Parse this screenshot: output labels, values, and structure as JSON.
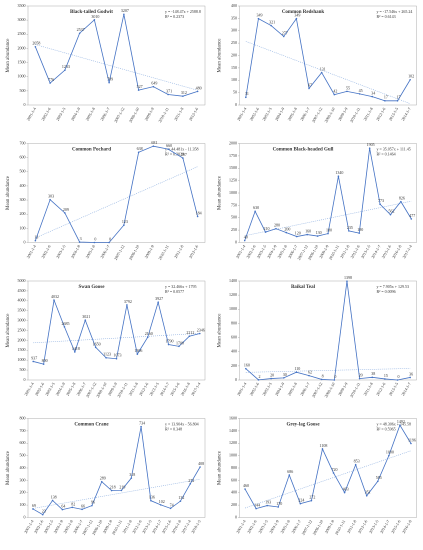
{
  "chart_data": [
    {
      "type": "line",
      "title": "Black-tailed Godwit",
      "y_label": "Mean abundance",
      "equation": "y = -148.47x + 2588.8",
      "r_squared": "R² = 0.2373",
      "color": "#4472c4",
      "categories": [
        "2001-1-4",
        "2002-1-6",
        "2003-1-5",
        "2004-1-9",
        "2005-1-8",
        "2006-1-7",
        "2007-1-12",
        "2008-1-10",
        "2009-1-9",
        "2010-1-11",
        "2011-1-8",
        "2012-1-6"
      ],
      "values": [
        2058,
        776,
        1233,
        2537,
        3010,
        789,
        3207,
        527,
        649,
        371,
        312,
        480
      ],
      "ylim": [
        0,
        3500
      ],
      "yticks": [
        0,
        500,
        1000,
        1500,
        2000,
        2500,
        3000,
        3500
      ]
    },
    {
      "type": "line",
      "title": "Common Redshank",
      "y_label": "Mean abundance",
      "equation": "y = -17.546x + 265.24",
      "r_squared": "R² = 0.6143",
      "color": "#4472c4",
      "categories": [
        "2001-1-4",
        "2002-1-6",
        "2003-1-5",
        "2004-1-9",
        "2005-1-8",
        "2006-1-7",
        "2007-1-12",
        "2008-1-10",
        "2009-1-9",
        "2010-1-11",
        "2011-1-8",
        "2012-1-6",
        "2013-1-5",
        "2014-1-7"
      ],
      "values": [
        31,
        349,
        321,
        277,
        349,
        67,
        131,
        42,
        55,
        45,
        34,
        17,
        17,
        102
      ],
      "ylim": [
        0,
        400
      ],
      "yticks": [
        0,
        50,
        100,
        150,
        200,
        250,
        300,
        350,
        400
      ]
    },
    {
      "type": "line",
      "title": "Common Pochard",
      "y_label": "Mean abundance",
      "equation": "y = 44.481x - 11.358",
      "r_squared": "R² = 0.3029",
      "color": "#4472c4",
      "categories": [
        "2001-1-4",
        "2002-1-6",
        "2003-1-5",
        "2004-1-9",
        "2005-1-8",
        "2006-1-7",
        "2007-1-12",
        "2008-1-10",
        "2009-1-9",
        "2010-1-11",
        "2011-1-8",
        "2012-1-6"
      ],
      "values": [
        13,
        303,
        209,
        3,
        0,
        0,
        123,
        638,
        681,
        660,
        597,
        184
      ],
      "ylim": [
        0,
        700
      ],
      "yticks": [
        0,
        100,
        200,
        300,
        400,
        500,
        600,
        700
      ]
    },
    {
      "type": "line",
      "title": "Common Black-headed Gull",
      "y_label": "Mean abundance",
      "equation": "y = 35.057x + 111.45",
      "r_squared": "R² = 0.1464",
      "color": "#4472c4",
      "categories": [
        "2001-1-4",
        "2002-1-6",
        "2003-1-5",
        "2004-1-9",
        "2005-1-8",
        "2006-1-7",
        "2007-1-12",
        "2008-1-10",
        "2009-1-9",
        "2010-1-11",
        "2011-1-8",
        "2012-1-6",
        "2013-1-5",
        "2014-1-7",
        "2015-1-6",
        "2016-1-8",
        "2017-1-4"
      ],
      "values": [
        40,
        630,
        210,
        280,
        200,
        120,
        160,
        130,
        180,
        1340,
        235,
        190,
        1905,
        773,
        562,
        826,
        477
      ],
      "ylim": [
        0,
        2000
      ],
      "yticks": [
        0,
        250,
        500,
        750,
        1000,
        1250,
        1500,
        1750,
        2000
      ]
    },
    {
      "type": "line",
      "title": "Swan Goose",
      "y_label": "Mean abundance",
      "equation": "y = 32.466x + 1795",
      "r_squared": "R² = 0.0577",
      "color": "#4472c4",
      "categories": [
        "2001-1-4",
        "2002-1-6",
        "2003-1-5",
        "2004-1-9",
        "2005-1-8",
        "2006-1-7",
        "2007-1-12",
        "2008-1-10",
        "2009-1-9",
        "2010-1-11",
        "2011-1-8",
        "2012-1-6",
        "2013-1-5",
        "2014-1-7",
        "2015-1-6",
        "2016-1-8",
        "2017-1-4"
      ],
      "values": [
        937,
        800,
        4032,
        2685,
        1418,
        3021,
        1650,
        1123,
        1073,
        3792,
        1306,
        2160,
        3927,
        1790,
        1700,
        2212,
        2346
      ],
      "ylim": [
        0,
        5000
      ],
      "yticks": [
        0,
        500,
        1000,
        1500,
        2000,
        2500,
        3000,
        3500,
        4000,
        4500,
        5000
      ]
    },
    {
      "type": "line",
      "title": "Baikal Teal",
      "y_label": "Mean abundance",
      "equation": "y = 7.905x + 129.53",
      "r_squared": "R² = 0.0096",
      "color": "#4472c4",
      "categories": [
        "2001-1-4",
        "2002-1-6",
        "2003-1-5",
        "2004-1-9",
        "2005-1-8",
        "2006-1-7",
        "2007-1-12",
        "2008-1-10",
        "2009-1-9",
        "2010-1-11",
        "2011-1-8",
        "2012-1-6",
        "2013-1-5",
        "2014-1-7"
      ],
      "values": [
        160,
        2,
        20,
        30,
        110,
        62,
        8,
        0,
        1398,
        20,
        38,
        15,
        0,
        36
      ],
      "ylim": [
        0,
        1400
      ],
      "yticks": [
        0,
        200,
        400,
        600,
        800,
        1000,
        1200,
        1400
      ]
    },
    {
      "type": "line",
      "title": "Common Crane",
      "y_label": "Mean abundance",
      "equation": "y = 13.904x - 56.804",
      "r_squared": "R² = 0.348",
      "color": "#4472c4",
      "categories": [
        "2001-1-4",
        "2002-1-6",
        "2003-1-5",
        "2004-1-9",
        "2005-1-8",
        "2006-1-7",
        "2007-1-12",
        "2008-1-10",
        "2009-1-9",
        "2010-1-11",
        "2011-1-8",
        "2012-1-6",
        "2013-1-5",
        "2014-1-7",
        "2015-1-6",
        "2016-1-8",
        "2017-1-4",
        "2018-1-5"
      ],
      "values": [
        69,
        23,
        138,
        64,
        82,
        66,
        96,
        289,
        218,
        219,
        318,
        734,
        136,
        102,
        74,
        132,
        272,
        408
      ],
      "ylim": [
        0,
        800
      ],
      "yticks": [
        0,
        100,
        200,
        300,
        400,
        500,
        600,
        700,
        800
      ]
    },
    {
      "type": "line",
      "title": "Grey-lag Goose",
      "y_label": "Mean abundance",
      "equation": "y = 48.306x + 145.58",
      "r_squared": "R² = 0.5965",
      "color": "#4472c4",
      "categories": [
        "2001-1-4",
        "2002-1-6",
        "2003-1-5",
        "2004-1-9",
        "2005-1-8",
        "2006-1-7",
        "2007-1-12",
        "2008-1-10",
        "2009-1-9",
        "2010-1-11",
        "2011-1-8",
        "2012-1-6",
        "2013-1-5",
        "2014-1-7",
        "2015-1-6",
        "2016-1-8"
      ],
      "values": [
        460,
        144,
        193,
        170,
        686,
        224,
        272,
        1108,
        720,
        403,
        853,
        351,
        585,
        1000,
        1492,
        1196
      ],
      "ylim": [
        0,
        1600
      ],
      "yticks": [
        0,
        200,
        400,
        600,
        800,
        1000,
        1200,
        1400,
        1600
      ]
    }
  ]
}
